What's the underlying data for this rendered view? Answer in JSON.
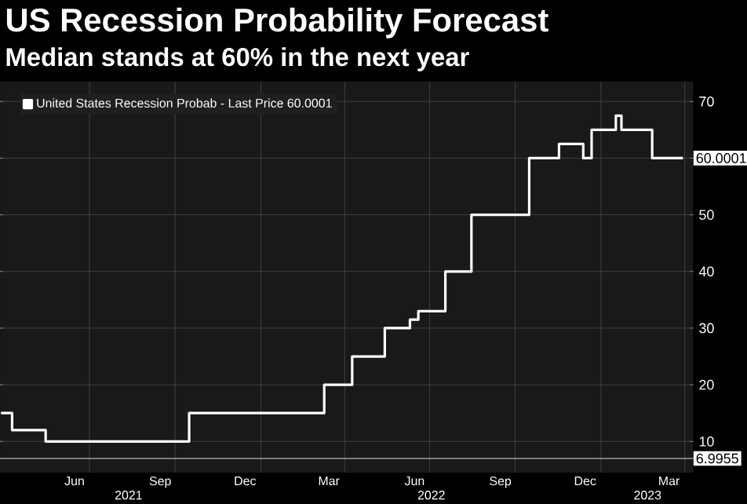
{
  "chart_data": {
    "type": "step",
    "title": "US Recession Probability Forecast",
    "subtitle": "Median stands at 60% in the next year",
    "x": [
      "2021-03-28",
      "2021-04-09",
      "2021-05-15",
      "2021-10-16",
      "2022-03-10",
      "2022-04-09",
      "2022-05-14",
      "2022-06-10",
      "2022-06-19",
      "2022-07-18",
      "2022-08-15",
      "2022-10-16",
      "2022-11-17",
      "2022-12-13",
      "2022-12-22",
      "2023-01-17",
      "2023-01-23",
      "2023-02-25",
      "2023-03-30"
    ],
    "series": [
      {
        "name": "United States Recession Probab - Last Price 60.0001",
        "color": "#ffffff",
        "values": [
          15,
          12,
          10,
          15,
          20,
          25,
          30,
          31.5,
          33,
          40,
          50,
          60,
          62.5,
          60,
          65,
          67.5,
          65,
          60,
          60
        ]
      }
    ],
    "xlim": [
      "2021-03-27",
      "2023-04-10"
    ],
    "xticks": [
      {
        "value": "2021-06-15",
        "label": "Jun"
      },
      {
        "value": "2021-09-15",
        "label": "Sep"
      },
      {
        "value": "2021-12-15",
        "label": "Dec"
      },
      {
        "value": "2022-03-15",
        "label": "Mar"
      },
      {
        "value": "2022-06-15",
        "label": "Jun"
      },
      {
        "value": "2022-09-15",
        "label": "Sep"
      },
      {
        "value": "2022-12-15",
        "label": "Dec"
      },
      {
        "value": "2023-03-15",
        "label": "Mar"
      },
      {
        "value": "2021-07-01",
        "label": null
      },
      {
        "value": "2021-10-01",
        "label": null
      },
      {
        "value": "2022-01-01",
        "label": null
      },
      {
        "value": "2022-04-01",
        "label": null
      },
      {
        "value": "2022-07-01",
        "label": null
      },
      {
        "value": "2022-10-01",
        "label": null
      },
      {
        "value": "2023-01-01",
        "label": null
      },
      {
        "value": "2023-04-01",
        "label": null
      }
    ],
    "ylim": [
      4.5,
      73.5
    ],
    "yticks": [
      10,
      20,
      30,
      40,
      50,
      {
        "value": 60,
        "label": null
      },
      70
    ],
    "ref_lines": [
      {
        "axis": "y",
        "value": 6.9955,
        "label": "6.9955",
        "color": "#a0a0a0"
      }
    ],
    "annotations": [
      "60.0001"
    ],
    "x2lim": [
      "2021-03-27",
      "2023-04-10"
    ],
    "x2ticks": [
      {
        "value": "2021-08-12",
        "label": "2021"
      },
      {
        "value": "2022-07-03",
        "label": "2022"
      },
      {
        "value": "2023-02-20",
        "label": "2023"
      }
    ],
    "grid": true,
    "legend": "top left",
    "marker": "none",
    "line_style": "solid"
  }
}
